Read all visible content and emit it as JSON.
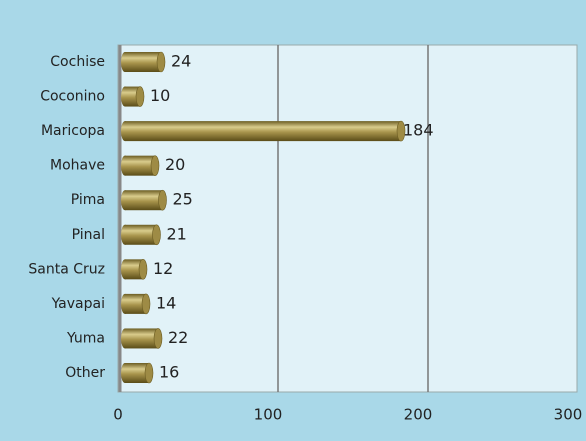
{
  "chart_data": {
    "type": "bar",
    "orientation": "horizontal",
    "categories": [
      "Cochise",
      "Coconino",
      "Maricopa",
      "Mohave",
      "Pima",
      "Pinal",
      "Santa Cruz",
      "Yavapai",
      "Yuma",
      "Other"
    ],
    "values": [
      24,
      10,
      184,
      20,
      25,
      21,
      12,
      14,
      22,
      16
    ],
    "color": "#8b7a3a",
    "xlim": [
      0,
      300
    ],
    "xticks": [
      0,
      100,
      200,
      300
    ],
    "grid": true
  }
}
